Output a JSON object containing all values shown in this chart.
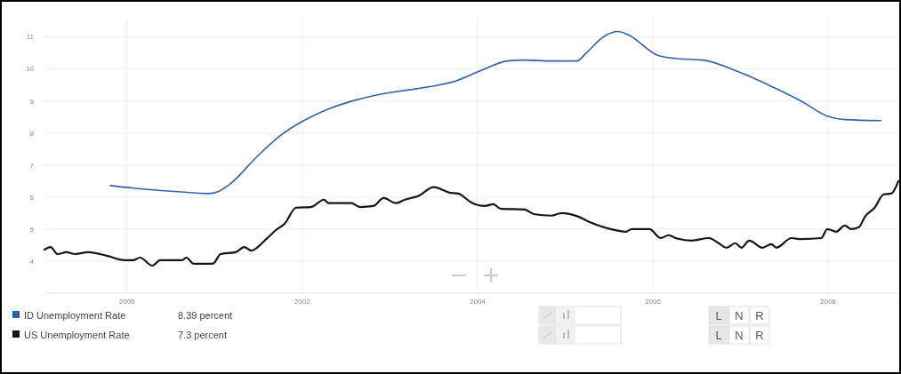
{
  "chart_data": {
    "type": "line",
    "xlim": [
      1999.06,
      2008.8
    ],
    "xticks": [
      2000,
      2002,
      2004,
      2006,
      2008
    ],
    "ylim": [
      3,
      11.6
    ],
    "yticks": [
      4,
      5,
      6,
      7,
      8,
      9,
      10,
      11
    ],
    "grid": true,
    "legend": "bottom left",
    "marker": "none",
    "line_style": "solid",
    "annotations": [
      "8.39 percent",
      "7.3 percent",
      "L",
      "N",
      "R"
    ],
    "series": [
      {
        "name": "ID Unemployment Rate",
        "color": "#2f62ad",
        "x": [
          1999.81,
          2000.07,
          2000.58,
          2000.93,
          2001.04,
          2001.19,
          2001.49,
          2001.75,
          2002.0,
          2002.3,
          2002.61,
          2002.91,
          2003.32,
          2003.73,
          2004.03,
          2004.34,
          2004.54,
          2004.84,
          2005.13,
          2005.25,
          2005.45,
          2005.6,
          2005.71,
          2006.06,
          2006.26,
          2006.57,
          2006.97,
          2007.38,
          2007.69,
          2007.99,
          2008.19,
          2008.6
        ],
        "values": [
          6.36,
          6.28,
          6.17,
          6.11,
          6.17,
          6.44,
          7.28,
          7.92,
          8.36,
          8.75,
          9.03,
          9.22,
          9.39,
          9.61,
          9.94,
          10.25,
          10.28,
          10.25,
          10.25,
          10.53,
          11.03,
          11.17,
          11.08,
          10.42,
          10.33,
          10.28,
          9.92,
          9.42,
          9.0,
          8.53,
          8.42,
          8.39
        ]
      },
      {
        "name": "US Unemployment Rate",
        "color": "#151515",
        "x": [
          1999.06,
          1999.13,
          1999.21,
          1999.31,
          1999.41,
          1999.56,
          1999.77,
          1999.97,
          2000.07,
          2000.15,
          2000.29,
          2000.38,
          2000.63,
          2000.68,
          2000.76,
          2000.98,
          2001.07,
          2001.24,
          2001.34,
          2001.42,
          2001.59,
          2001.7,
          2001.8,
          2001.93,
          2002.1,
          2002.25,
          2002.3,
          2002.56,
          2002.66,
          2002.81,
          2002.93,
          2003.07,
          2003.17,
          2003.32,
          2003.5,
          2003.68,
          2003.78,
          2003.93,
          2004.08,
          2004.18,
          2004.26,
          2004.54,
          2004.64,
          2004.84,
          2004.96,
          2005.15,
          2005.28,
          2005.52,
          2005.69,
          2005.76,
          2005.96,
          2006.09,
          2006.18,
          2006.26,
          2006.44,
          2006.64,
          2006.74,
          2006.84,
          2006.94,
          2007.01,
          2007.1,
          2007.25,
          2007.35,
          2007.41,
          2007.58,
          2007.69,
          2007.92,
          2007.99,
          2008.09,
          2008.19,
          2008.26,
          2008.35,
          2008.42,
          2008.53,
          2008.63,
          2008.72,
          2008.8
        ],
        "values": [
          4.36,
          4.44,
          4.22,
          4.28,
          4.22,
          4.28,
          4.17,
          4.03,
          4.03,
          4.11,
          3.86,
          4.03,
          4.03,
          4.11,
          3.92,
          3.92,
          4.22,
          4.28,
          4.44,
          4.33,
          4.69,
          4.97,
          5.17,
          5.67,
          5.69,
          5.92,
          5.81,
          5.81,
          5.69,
          5.72,
          5.97,
          5.81,
          5.92,
          6.03,
          6.31,
          6.14,
          6.11,
          5.83,
          5.72,
          5.78,
          5.64,
          5.61,
          5.47,
          5.42,
          5.5,
          5.39,
          5.22,
          5.0,
          4.92,
          5.0,
          5.0,
          4.72,
          4.81,
          4.72,
          4.64,
          4.72,
          4.58,
          4.42,
          4.56,
          4.42,
          4.64,
          4.42,
          4.53,
          4.42,
          4.72,
          4.69,
          4.72,
          5.0,
          4.92,
          5.11,
          5.0,
          5.06,
          5.39,
          5.67,
          6.08,
          6.11,
          6.5
        ]
      }
    ]
  }
}
